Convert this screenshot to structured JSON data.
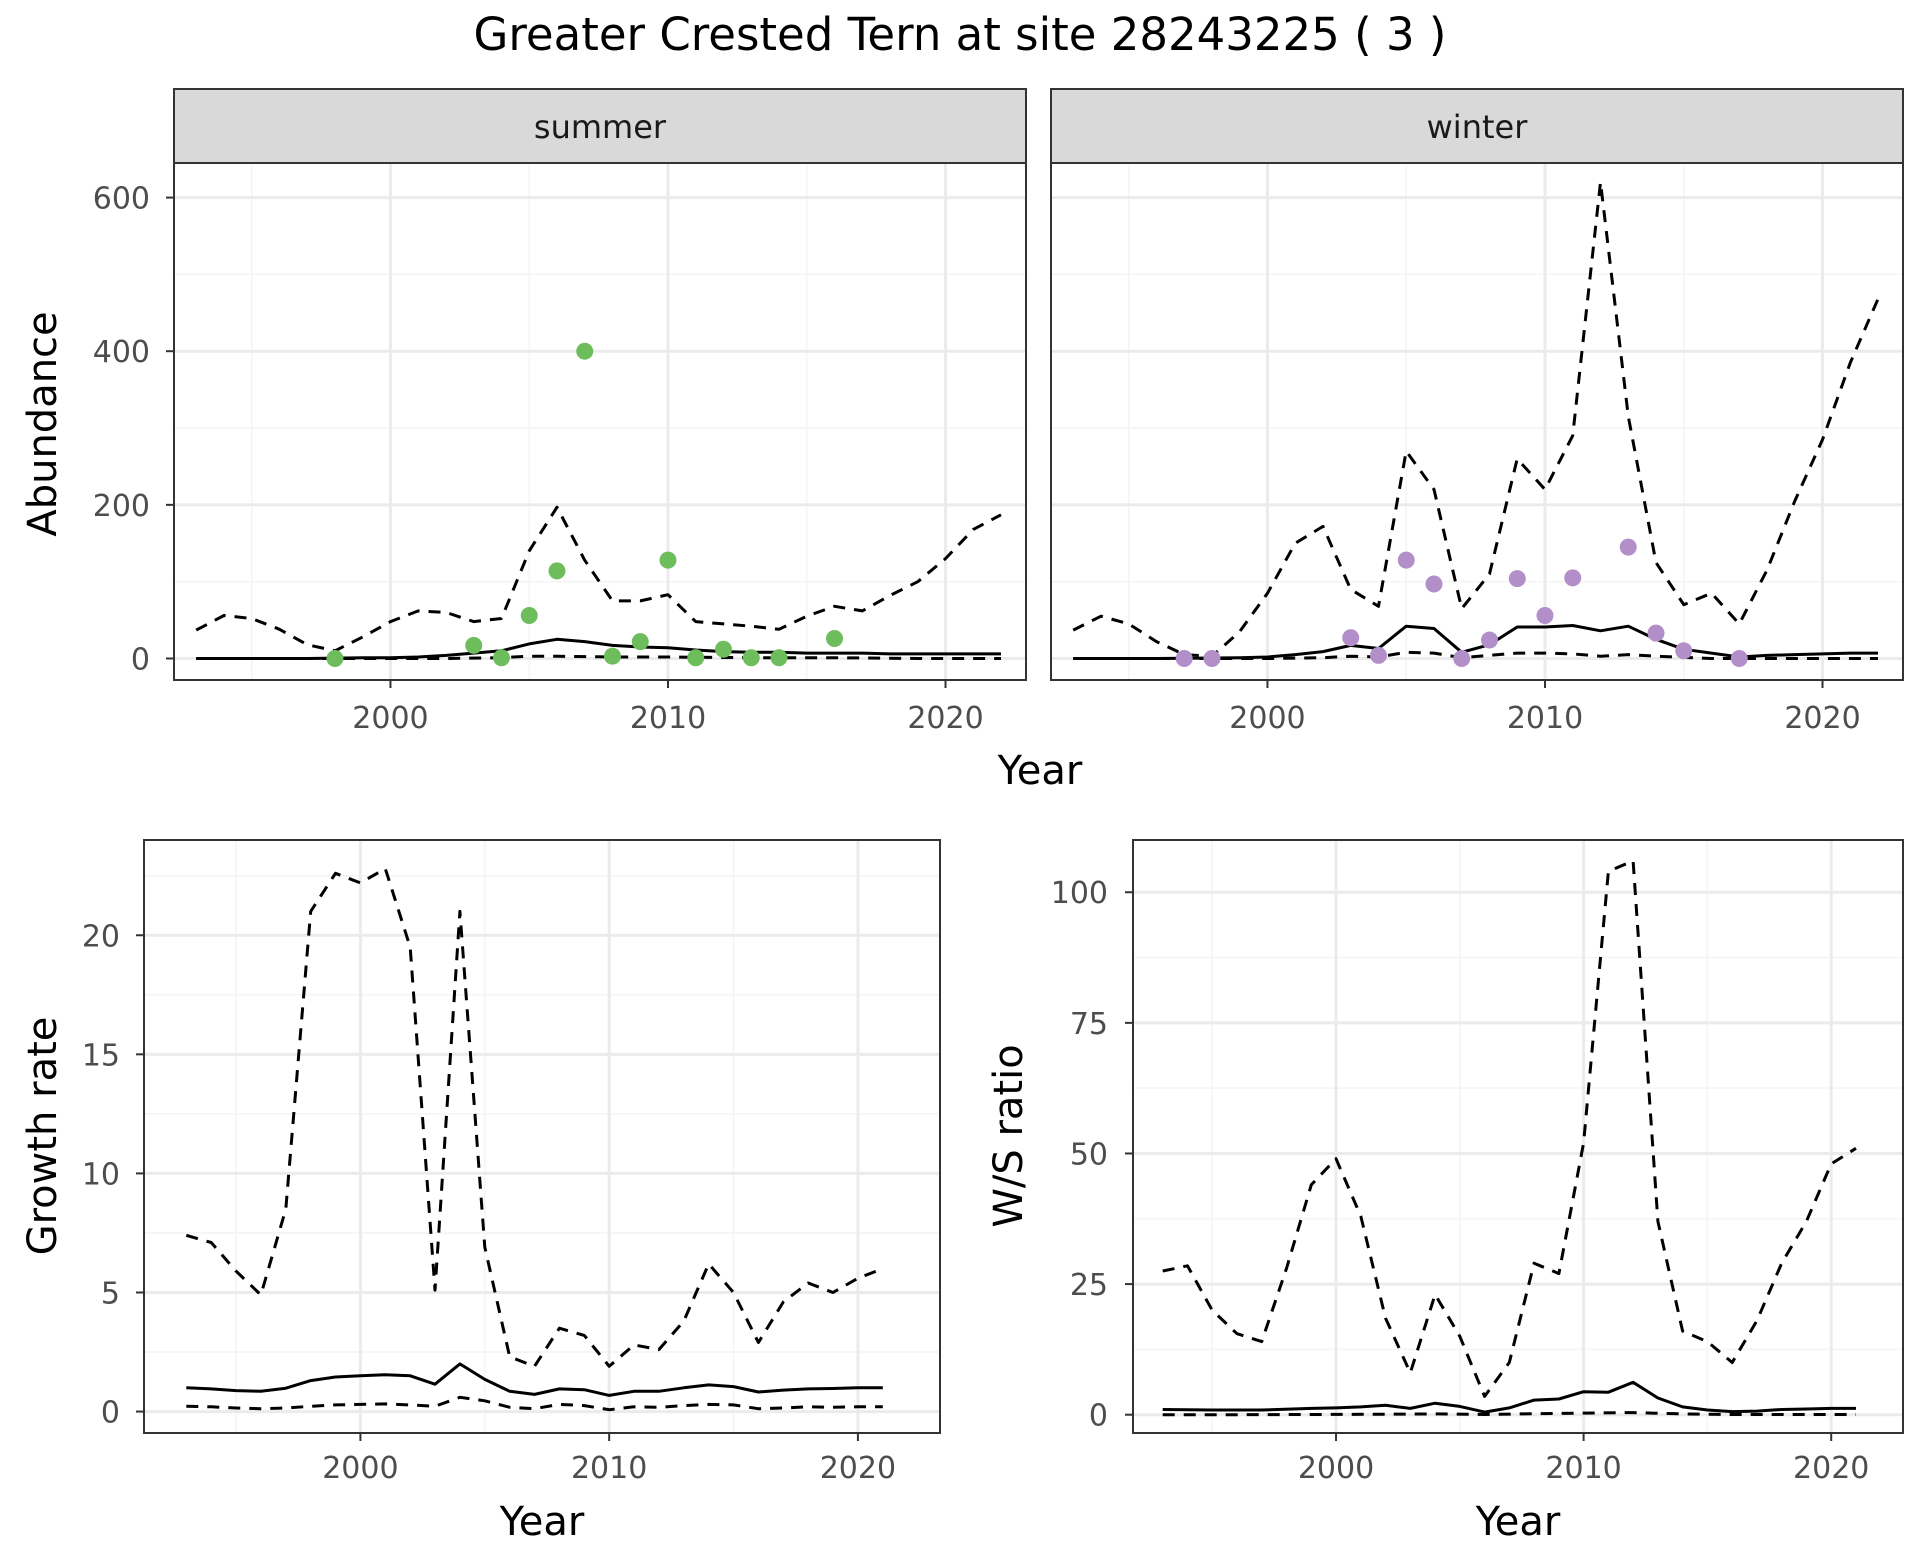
{
  "figure": {
    "title": "Greater Crested Tern at site 28243225 ( 3 )",
    "abundance_xlabel": "Year",
    "abundance_ylabel": "Abundance"
  },
  "colors": {
    "summer_points": "#6dbd5d",
    "winter_points": "#b38fca",
    "lines": "#000000",
    "panel_border": "#333333",
    "strip_fill": "#d9d9d9",
    "grid_major": "#ebebeb",
    "grid_minor": "#f4f4f4"
  },
  "chart_data": [
    {
      "id": "summer",
      "type": "scatter+line",
      "facet_label": "summer",
      "xlim": [
        1992.2,
        2022.9
      ],
      "ylim": [
        -28,
        645
      ],
      "x_ticks": [
        2000,
        2010,
        2020
      ],
      "y_ticks": [
        0,
        200,
        400,
        600
      ],
      "x_ticks_shown": true,
      "y_ticks_shown": true,
      "points": {
        "x": [
          1998,
          2003,
          2004,
          2005,
          2006,
          2007,
          2008,
          2009,
          2010,
          2011,
          2012,
          2013,
          2014,
          2016
        ],
        "y": [
          0,
          17,
          1,
          56,
          114,
          400,
          3,
          22,
          128,
          1,
          12,
          1,
          1,
          26
        ]
      },
      "series": [
        {
          "name": "estimate",
          "style": "solid",
          "x": [
            1993,
            1995,
            1997,
            1999,
            2000,
            2001,
            2002,
            2003,
            2004,
            2005,
            2006,
            2007,
            2008,
            2009,
            2010,
            2011,
            2012,
            2013,
            2014,
            2015,
            2016,
            2017,
            2018,
            2019,
            2020,
            2021,
            2022
          ],
          "y": [
            0,
            0,
            0,
            1,
            1,
            2,
            4,
            7,
            10,
            19,
            25,
            22,
            17,
            15,
            14,
            11,
            9,
            8,
            8,
            7,
            7,
            7,
            6,
            6,
            6,
            6,
            6
          ]
        },
        {
          "name": "upper",
          "style": "dashed",
          "x": [
            1993,
            1994,
            1995,
            1996,
            1997,
            1998,
            1999,
            2000,
            2001,
            2002,
            2003,
            2004,
            2005,
            2006,
            2007,
            2008,
            2009,
            2010,
            2011,
            2012,
            2013,
            2014,
            2015,
            2016,
            2017,
            2018,
            2019,
            2020,
            2021,
            2022
          ],
          "y": [
            37,
            56,
            52,
            38,
            18,
            10,
            28,
            48,
            62,
            60,
            48,
            52,
            140,
            197,
            128,
            75,
            75,
            83,
            48,
            45,
            42,
            38,
            55,
            68,
            62,
            82,
            100,
            130,
            168,
            187
          ]
        },
        {
          "name": "lower",
          "style": "dashed",
          "x": [
            1993,
            1996,
            1999,
            2002,
            2004,
            2005,
            2006,
            2008,
            2010,
            2013,
            2016,
            2019,
            2022
          ],
          "y": [
            0,
            0,
            0,
            0,
            1,
            3,
            3,
            2,
            2,
            1,
            1,
            0,
            0
          ]
        }
      ]
    },
    {
      "id": "winter",
      "type": "scatter+line",
      "facet_label": "winter",
      "xlim": [
        1992.2,
        2022.9
      ],
      "ylim": [
        -28,
        645
      ],
      "x_ticks": [
        2000,
        2010,
        2020
      ],
      "y_ticks": [
        0,
        200,
        400,
        600
      ],
      "x_ticks_shown": true,
      "y_ticks_shown": false,
      "points": {
        "x": [
          1997,
          1998,
          2003,
          2004,
          2005,
          2006,
          2007,
          2008,
          2009,
          2010,
          2011,
          2013,
          2014,
          2015,
          2017
        ],
        "y": [
          0,
          0,
          27,
          4,
          128,
          97,
          0,
          24,
          104,
          56,
          105,
          145,
          33,
          10,
          0
        ]
      },
      "series": [
        {
          "name": "estimate",
          "style": "solid",
          "x": [
            1993,
            1996,
            1999,
            2000,
            2001,
            2002,
            2003,
            2004,
            2005,
            2006,
            2007,
            2008,
            2009,
            2010,
            2011,
            2012,
            2013,
            2014,
            2015,
            2016,
            2017,
            2018,
            2019,
            2020,
            2021,
            2022
          ],
          "y": [
            0,
            0,
            1,
            2,
            5,
            9,
            17,
            13,
            42,
            39,
            8,
            18,
            41,
            41,
            43,
            36,
            42,
            25,
            12,
            7,
            2,
            4,
            5,
            6,
            7,
            7
          ]
        },
        {
          "name": "upper",
          "style": "dashed",
          "x": [
            1993,
            1994,
            1995,
            1996,
            1997,
            1998,
            1999,
            2000,
            2001,
            2002,
            2003,
            2004,
            2005,
            2006,
            2007,
            2008,
            2009,
            2010,
            2011,
            2012,
            2013,
            2014,
            2015,
            2016,
            2017,
            2018,
            2019,
            2020,
            2021,
            2022
          ],
          "y": [
            37,
            55,
            45,
            22,
            5,
            3,
            35,
            85,
            150,
            172,
            90,
            68,
            270,
            220,
            65,
            110,
            260,
            220,
            290,
            620,
            315,
            125,
            70,
            85,
            45,
            115,
            205,
            285,
            385,
            468
          ]
        },
        {
          "name": "lower",
          "style": "dashed",
          "x": [
            1993,
            1997,
            2000,
            2002,
            2003,
            2004,
            2005,
            2006,
            2007,
            2008,
            2009,
            2010,
            2011,
            2012,
            2013,
            2014,
            2016,
            2018,
            2022
          ],
          "y": [
            0,
            0,
            0,
            1,
            3,
            2,
            8,
            7,
            1,
            4,
            7,
            7,
            6,
            3,
            5,
            3,
            0,
            0,
            0
          ]
        }
      ]
    },
    {
      "id": "growth",
      "type": "line",
      "xlabel": "Year",
      "ylabel": "Growth rate",
      "xlim": [
        1991.3,
        2023.3
      ],
      "ylim": [
        -0.9,
        24.0
      ],
      "x_ticks": [
        2000,
        2010,
        2020
      ],
      "y_ticks": [
        0,
        5,
        10,
        15,
        20
      ],
      "series": [
        {
          "name": "estimate",
          "style": "solid",
          "x": [
            1993,
            1994,
            1995,
            1996,
            1997,
            1998,
            1999,
            2000,
            2001,
            2002,
            2003,
            2004,
            2005,
            2006,
            2007,
            2008,
            2009,
            2010,
            2011,
            2012,
            2013,
            2014,
            2015,
            2016,
            2017,
            2018,
            2019,
            2020,
            2021
          ],
          "y": [
            1.0,
            0.95,
            0.88,
            0.85,
            0.98,
            1.3,
            1.45,
            1.5,
            1.55,
            1.5,
            1.15,
            2.0,
            1.35,
            0.85,
            0.72,
            0.95,
            0.92,
            0.68,
            0.85,
            0.85,
            1.0,
            1.12,
            1.05,
            0.82,
            0.9,
            0.95,
            0.97,
            1.0,
            1.0
          ]
        },
        {
          "name": "upper",
          "style": "dashed",
          "x": [
            1993,
            1994,
            1995,
            1996,
            1997,
            1998,
            1999,
            2000,
            2001,
            2002,
            2003,
            2004,
            2005,
            2006,
            2007,
            2008,
            2009,
            2010,
            2011,
            2012,
            2013,
            2014,
            2015,
            2016,
            2017,
            2018,
            2019,
            2020,
            2021
          ],
          "y": [
            7.4,
            7.1,
            5.9,
            4.9,
            8.5,
            21.0,
            22.6,
            22.2,
            22.8,
            19.5,
            5.1,
            21.0,
            6.9,
            2.3,
            1.9,
            3.5,
            3.2,
            1.9,
            2.8,
            2.6,
            3.8,
            6.2,
            5.0,
            2.9,
            4.6,
            5.4,
            5.0,
            5.6,
            6.0
          ]
        },
        {
          "name": "lower",
          "style": "dashed",
          "x": [
            1993,
            1994,
            1995,
            1996,
            1997,
            1998,
            1999,
            2000,
            2001,
            2002,
            2003,
            2004,
            2005,
            2006,
            2007,
            2008,
            2009,
            2010,
            2011,
            2012,
            2013,
            2014,
            2015,
            2016,
            2017,
            2018,
            2019,
            2020,
            2021
          ],
          "y": [
            0.22,
            0.2,
            0.15,
            0.12,
            0.15,
            0.22,
            0.28,
            0.3,
            0.32,
            0.28,
            0.22,
            0.6,
            0.45,
            0.18,
            0.12,
            0.3,
            0.25,
            0.08,
            0.2,
            0.18,
            0.25,
            0.3,
            0.28,
            0.12,
            0.15,
            0.2,
            0.18,
            0.2,
            0.2
          ]
        }
      ]
    },
    {
      "id": "ratio",
      "type": "line",
      "xlabel": "Year",
      "ylabel": "W/S ratio",
      "xlim": [
        1991.8,
        2022.9
      ],
      "ylim": [
        -3.5,
        110.0
      ],
      "x_ticks": [
        2000,
        2010,
        2020
      ],
      "y_ticks": [
        0,
        25,
        50,
        75,
        100
      ],
      "y_tick_labels": [
        "0",
        "25",
        "50",
        "75",
        "100"
      ],
      "series": [
        {
          "name": "estimate",
          "style": "solid",
          "x": [
            1993,
            1995,
            1997,
            1999,
            2000,
            2001,
            2002,
            2003,
            2004,
            2005,
            2006,
            2007,
            2008,
            2009,
            2010,
            2011,
            2012,
            2013,
            2014,
            2015,
            2016,
            2017,
            2018,
            2019,
            2020,
            2021
          ],
          "y": [
            1.0,
            0.9,
            0.9,
            1.2,
            1.3,
            1.5,
            1.8,
            1.2,
            2.2,
            1.6,
            0.5,
            1.3,
            2.8,
            3.0,
            4.4,
            4.3,
            6.2,
            3.2,
            1.5,
            0.9,
            0.6,
            0.7,
            1.0,
            1.1,
            1.2,
            1.2
          ]
        },
        {
          "name": "upper",
          "style": "dashed",
          "x": [
            1993,
            1994,
            1995,
            1996,
            1997,
            1998,
            1999,
            2000,
            2001,
            2002,
            2003,
            2004,
            2005,
            2006,
            2007,
            2008,
            2009,
            2010,
            2011,
            2012,
            2013,
            2014,
            2015,
            2016,
            2017,
            2018,
            2019,
            2020,
            2021
          ],
          "y": [
            27.5,
            28.5,
            20.0,
            15.5,
            14.0,
            28.0,
            44.0,
            49.0,
            38.0,
            18.5,
            8.0,
            23.0,
            15.0,
            3.5,
            10.0,
            29.0,
            27.0,
            52.0,
            104.0,
            106.0,
            37.0,
            16.0,
            14.0,
            10.0,
            18.0,
            29.0,
            37.0,
            48.0,
            51.0
          ]
        },
        {
          "name": "lower",
          "style": "dashed",
          "x": [
            1993,
            1996,
            1999,
            2002,
            2004,
            2006,
            2008,
            2010,
            2012,
            2014,
            2016,
            2018,
            2021
          ],
          "y": [
            0,
            0,
            0.05,
            0.1,
            0.15,
            0.05,
            0.2,
            0.3,
            0.4,
            0.15,
            0.05,
            0.05,
            0.05
          ]
        }
      ]
    }
  ]
}
